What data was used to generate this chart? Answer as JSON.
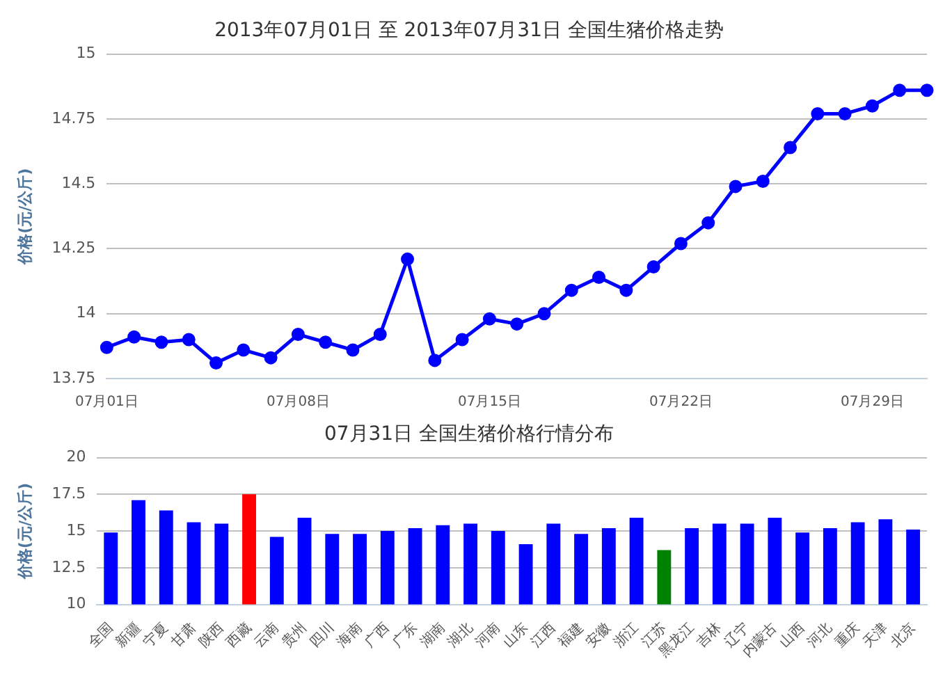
{
  "chart_data": [
    {
      "type": "line",
      "title": "2013年07月01日 至 2013年07月31日 全国生猪价格走势",
      "ylabel": "价格(元/公斤)",
      "categories": [
        "07月01日",
        null,
        null,
        null,
        null,
        null,
        null,
        "07月08日",
        null,
        null,
        null,
        null,
        null,
        null,
        "07月15日",
        null,
        null,
        null,
        null,
        null,
        null,
        "07月22日",
        null,
        null,
        null,
        null,
        null,
        null,
        "07月29日",
        null,
        null
      ],
      "series": [
        {
          "color": "#0000ff",
          "values": [
            13.87,
            13.91,
            13.89,
            13.9,
            13.81,
            13.86,
            13.83,
            13.92,
            13.89,
            13.86,
            13.92,
            14.21,
            13.82,
            13.9,
            13.98,
            13.96,
            14.0,
            14.09,
            14.14,
            14.09,
            14.18,
            14.27,
            14.35,
            14.49,
            14.51,
            14.64,
            14.77,
            14.77,
            14.8,
            14.86,
            14.86
          ]
        }
      ],
      "ylim": [
        13.75,
        15
      ],
      "yticks": [
        13.75,
        14,
        14.25,
        14.5,
        14.75,
        15
      ],
      "grid": "y",
      "marker": "circle",
      "legend": false
    },
    {
      "type": "bar",
      "title": "07月31日 全国生猪价格行情分布",
      "ylabel": "价格(元/公斤)",
      "categories": [
        "全国",
        "新疆",
        "宁夏",
        "甘肃",
        "陕西",
        "西藏",
        "云南",
        "贵州",
        "四川",
        "海南",
        "广西",
        "广东",
        "湖南",
        "湖北",
        "河南",
        "山东",
        "江西",
        "福建",
        "安徽",
        "浙江",
        "江苏",
        "黑龙江",
        "吉林",
        "辽宁",
        "内蒙古",
        "山西",
        "河北",
        "重庆",
        "天津",
        "北京"
      ],
      "values": [
        14.9,
        17.1,
        16.4,
        15.6,
        15.5,
        17.5,
        14.6,
        15.9,
        14.8,
        14.8,
        15.0,
        15.2,
        15.4,
        15.5,
        15.0,
        14.1,
        15.5,
        14.8,
        15.2,
        15.9,
        13.7,
        15.2,
        15.5,
        15.5,
        15.9,
        14.9,
        15.2,
        15.6,
        15.8,
        15.1
      ],
      "colors": [
        "#0000ff",
        "#0000ff",
        "#0000ff",
        "#0000ff",
        "#0000ff",
        "#ff0000",
        "#0000ff",
        "#0000ff",
        "#0000ff",
        "#0000ff",
        "#0000ff",
        "#0000ff",
        "#0000ff",
        "#0000ff",
        "#0000ff",
        "#0000ff",
        "#0000ff",
        "#0000ff",
        "#0000ff",
        "#0000ff",
        "#008000",
        "#0000ff",
        "#0000ff",
        "#0000ff",
        "#0000ff",
        "#0000ff",
        "#0000ff",
        "#0000ff",
        "#0000ff",
        "#0000ff"
      ],
      "ylim": [
        10,
        20
      ],
      "yticks": [
        10,
        12.5,
        15,
        17.5,
        20
      ],
      "grid": "y",
      "legend": false
    }
  ]
}
